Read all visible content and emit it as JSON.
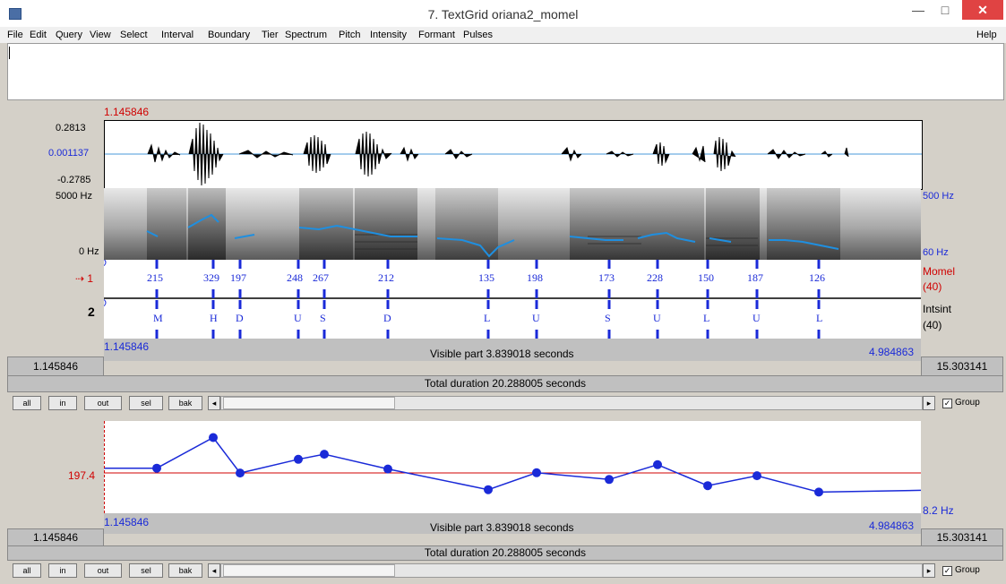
{
  "window": {
    "title": "7. TextGrid oriana2_momel",
    "close_glyph": "✕",
    "min_glyph": "—",
    "max_glyph": "□"
  },
  "menu": {
    "items": [
      "File",
      "Edit",
      "Query",
      "View",
      "Select",
      "Interval",
      "Boundary",
      "Tier",
      "Spectrum",
      "Pitch",
      "Intensity",
      "Formant",
      "Pulses"
    ],
    "help": "Help"
  },
  "editor": {
    "cursor_time": "1.145846",
    "waveform": {
      "max": "0.2813",
      "mid": "0.001137",
      "min": "-0.2785"
    },
    "spectrogram": {
      "top_left": "5000 Hz",
      "bottom_left": "0 Hz",
      "top_right": "500 Hz",
      "bottom_right": "60 Hz"
    },
    "tiers": [
      {
        "number": "1",
        "name": "Momel",
        "count": "(40)",
        "values": [
          "215",
          "329",
          "197",
          "248",
          "267",
          "212",
          "135",
          "198",
          "173",
          "228",
          "150",
          "187",
          "126"
        ]
      },
      {
        "number": "2",
        "name": "Intsint",
        "count": "(40)",
        "values": [
          "M",
          "H",
          "D",
          "U",
          "S",
          "D",
          "L",
          "U",
          "S",
          "U",
          "L",
          "U",
          "L"
        ]
      }
    ],
    "visible_start": "1.145846",
    "visible_end": "4.984863",
    "visible_part": "Visible part 3.839018 seconds",
    "left_total": "1.145846",
    "right_total": "15.303141",
    "total_duration": "Total duration 20.288005 seconds"
  },
  "nav": {
    "all": "all",
    "in": "in",
    "out": "out",
    "sel": "sel",
    "bak": "bak",
    "left_arrow": "◂",
    "right_arrow": "▸",
    "group_label": "Group",
    "group_checked": "✓"
  },
  "pitch_panel": {
    "value_label": "197.4",
    "bottom_right": "8.2 Hz",
    "visible_start": "1.145846",
    "visible_end": "4.984863",
    "visible_part": "Visible part 3.839018 seconds",
    "left_total": "1.145846",
    "right_total": "15.303141",
    "total_duration": "Total duration 20.288005 seconds"
  },
  "nav2": {
    "all": "all",
    "in": "in",
    "out": "out",
    "sel": "sel",
    "bak": "bak",
    "left_arrow": "◂",
    "right_arrow": "▸",
    "group_label": "Group",
    "group_checked": "✓"
  },
  "colors": {
    "accent_blue": "#1a2ad8",
    "cursor_red": "#d00000",
    "pitch_line": "#1f8fe0",
    "close_red": "#e04343"
  }
}
